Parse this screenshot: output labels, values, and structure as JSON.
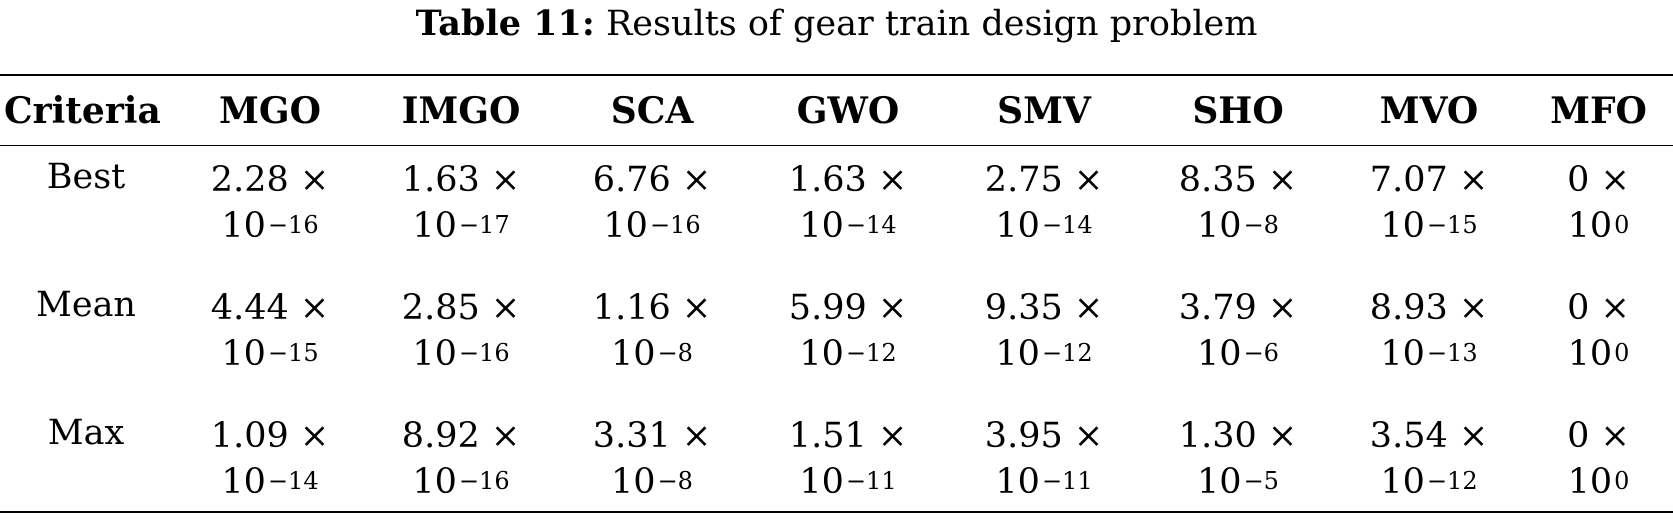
{
  "caption": {
    "label": "Table 11:",
    "text": "Results of gear train design problem"
  },
  "table": {
    "headers": [
      "Criteria",
      "MGO",
      "IMGO",
      "SCA",
      "GWO",
      "SMV",
      "SHO",
      "MVO",
      "MFO"
    ],
    "rows": [
      {
        "criteria": "Best",
        "cells": [
          {
            "mantissa": "2.28 ×",
            "base": "10",
            "exponent": "−16"
          },
          {
            "mantissa": "1.63 ×",
            "base": "10",
            "exponent": "−17"
          },
          {
            "mantissa": "6.76 ×",
            "base": "10",
            "exponent": "−16"
          },
          {
            "mantissa": "1.63 ×",
            "base": "10",
            "exponent": "−14"
          },
          {
            "mantissa": "2.75 ×",
            "base": "10",
            "exponent": "−14"
          },
          {
            "mantissa": "8.35 ×",
            "base": "10",
            "exponent": "−8"
          },
          {
            "mantissa": "7.07 ×",
            "base": "10",
            "exponent": "−15"
          },
          {
            "mantissa": "0 ×",
            "base": "10",
            "exponent": "0"
          }
        ]
      },
      {
        "criteria": "Mean",
        "cells": [
          {
            "mantissa": "4.44 ×",
            "base": "10",
            "exponent": "−15"
          },
          {
            "mantissa": "2.85 ×",
            "base": "10",
            "exponent": "−16"
          },
          {
            "mantissa": "1.16 ×",
            "base": "10",
            "exponent": "−8"
          },
          {
            "mantissa": "5.99 ×",
            "base": "10",
            "exponent": "−12"
          },
          {
            "mantissa": "9.35 ×",
            "base": "10",
            "exponent": "−12"
          },
          {
            "mantissa": "3.79 ×",
            "base": "10",
            "exponent": "−6"
          },
          {
            "mantissa": "8.93 ×",
            "base": "10",
            "exponent": "−13"
          },
          {
            "mantissa": "0 ×",
            "base": "10",
            "exponent": "0"
          }
        ]
      },
      {
        "criteria": "Max",
        "cells": [
          {
            "mantissa": "1.09 ×",
            "base": "10",
            "exponent": "−14"
          },
          {
            "mantissa": "8.92 ×",
            "base": "10",
            "exponent": "−16"
          },
          {
            "mantissa": "3.31 ×",
            "base": "10",
            "exponent": "−8"
          },
          {
            "mantissa": "1.51 ×",
            "base": "10",
            "exponent": "−11"
          },
          {
            "mantissa": "3.95 ×",
            "base": "10",
            "exponent": "−11"
          },
          {
            "mantissa": "1.30 ×",
            "base": "10",
            "exponent": "−5"
          },
          {
            "mantissa": "3.54 ×",
            "base": "10",
            "exponent": "−12"
          },
          {
            "mantissa": "0 ×",
            "base": "10",
            "exponent": "0"
          }
        ]
      }
    ]
  }
}
